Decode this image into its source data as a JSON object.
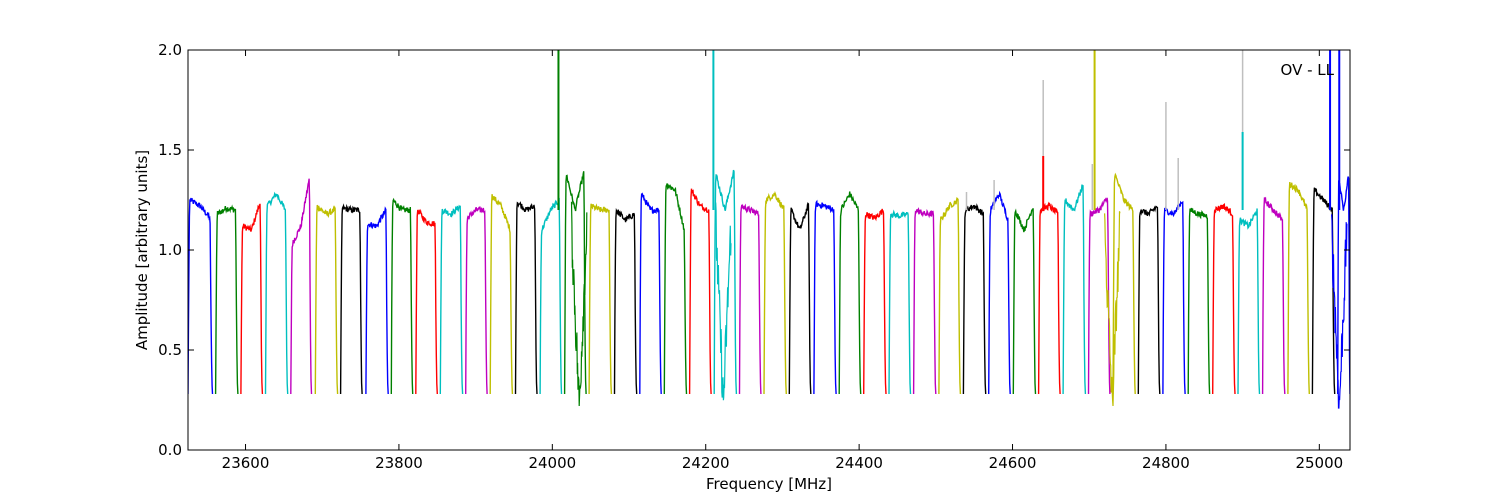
{
  "chart_data": {
    "type": "line",
    "title": "",
    "annotation": "OV - LL",
    "xlabel": "Frequency [MHz]",
    "ylabel": "Amplitude [arbitrary units]",
    "xlim": [
      23525,
      25040
    ],
    "ylim": [
      0.0,
      2.0
    ],
    "xticks": [
      23600,
      23800,
      24000,
      24200,
      24400,
      24600,
      24800,
      25000
    ],
    "xtick_labels": [
      "23600",
      "23800",
      "24000",
      "24200",
      "24400",
      "24600",
      "24800",
      "25000"
    ],
    "yticks": [
      0.0,
      0.5,
      1.0,
      1.5,
      2.0
    ],
    "ytick_labels": [
      "0.0",
      "0.5",
      "1.0",
      "1.5",
      "2.0"
    ],
    "grid": false,
    "legend": "none",
    "color_cycle": [
      "#0000ff",
      "#008000",
      "#ff0000",
      "#00bfbf",
      "#bf00bf",
      "#bfbf00",
      "#000000"
    ],
    "spike_color": "#bfbfbf",
    "series_windows": [
      {
        "start": 23525,
        "end": 23557,
        "color": "#0000ff",
        "peaks": [
          1.25,
          1.22,
          1.16
        ]
      },
      {
        "start": 23561,
        "end": 23590,
        "color": "#008000",
        "peaks": [
          1.18,
          1.21,
          1.2
        ]
      },
      {
        "start": 23594,
        "end": 23622,
        "color": "#ff0000",
        "peaks": [
          1.12,
          1.1,
          1.24
        ]
      },
      {
        "start": 23626,
        "end": 23655,
        "color": "#00bfbf",
        "peaks": [
          1.22,
          1.28,
          1.2
        ]
      },
      {
        "start": 23659,
        "end": 23686,
        "color": "#bf00bf",
        "peaks": [
          1.03,
          1.12,
          1.36
        ]
      },
      {
        "start": 23691,
        "end": 23720,
        "color": "#bfbf00",
        "peaks": [
          1.22,
          1.18,
          1.2
        ]
      },
      {
        "start": 23724,
        "end": 23752,
        "color": "#000000",
        "peaks": [
          1.21,
          1.2,
          1.2
        ]
      },
      {
        "start": 23757,
        "end": 23786,
        "color": "#0000ff",
        "peaks": [
          1.13,
          1.12,
          1.2
        ]
      },
      {
        "start": 23790,
        "end": 23818,
        "color": "#008000",
        "peaks": [
          1.25,
          1.2,
          1.2
        ]
      },
      {
        "start": 23822,
        "end": 23850,
        "color": "#ff0000",
        "peaks": [
          1.2,
          1.14,
          1.13
        ]
      },
      {
        "start": 23854,
        "end": 23883,
        "color": "#00bfbf",
        "peaks": [
          1.2,
          1.18,
          1.22
        ]
      },
      {
        "start": 23887,
        "end": 23915,
        "color": "#bf00bf",
        "peaks": [
          1.16,
          1.2,
          1.2
        ]
      },
      {
        "start": 23919,
        "end": 23948,
        "color": "#bfbf00",
        "peaks": [
          1.27,
          1.22,
          1.1
        ]
      },
      {
        "start": 23952,
        "end": 23980,
        "color": "#000000",
        "peaks": [
          1.24,
          1.2,
          1.22
        ]
      },
      {
        "start": 23984,
        "end": 24012,
        "color": "#00bfbf",
        "peaks": [
          1.1,
          1.2,
          1.25
        ]
      },
      {
        "start": 24016,
        "end": 24044,
        "color": "#008000",
        "peaks": [
          1.38,
          1.2,
          1.39
        ]
      },
      {
        "start": 24048,
        "end": 24077,
        "color": "#bfbf00",
        "peaks": [
          1.22,
          1.2,
          1.2
        ]
      },
      {
        "start": 24081,
        "end": 24110,
        "color": "#000000",
        "peaks": [
          1.2,
          1.15,
          1.18
        ]
      },
      {
        "start": 24114,
        "end": 24142,
        "color": "#0000ff",
        "peaks": [
          1.28,
          1.2,
          1.2
        ]
      },
      {
        "start": 24146,
        "end": 24175,
        "color": "#008000",
        "peaks": [
          1.33,
          1.3,
          1.1
        ]
      },
      {
        "start": 24179,
        "end": 24207,
        "color": "#ff0000",
        "peaks": [
          1.3,
          1.22,
          1.2
        ]
      },
      {
        "start": 24211,
        "end": 24240,
        "color": "#00bfbf",
        "peaks": [
          1.38,
          1.2,
          1.4
        ]
      },
      {
        "start": 24244,
        "end": 24272,
        "color": "#bf00bf",
        "peaks": [
          1.22,
          1.2,
          1.18
        ]
      },
      {
        "start": 24276,
        "end": 24305,
        "color": "#bfbf00",
        "peaks": [
          1.25,
          1.28,
          1.2
        ]
      },
      {
        "start": 24309,
        "end": 24337,
        "color": "#000000",
        "peaks": [
          1.2,
          1.1,
          1.23
        ]
      },
      {
        "start": 24341,
        "end": 24370,
        "color": "#0000ff",
        "peaks": [
          1.23,
          1.22,
          1.2
        ]
      },
      {
        "start": 24374,
        "end": 24402,
        "color": "#008000",
        "peaks": [
          1.2,
          1.28,
          1.2
        ]
      },
      {
        "start": 24406,
        "end": 24435,
        "color": "#ff0000",
        "peaks": [
          1.18,
          1.16,
          1.2
        ]
      },
      {
        "start": 24439,
        "end": 24467,
        "color": "#00bfbf",
        "peaks": [
          1.18,
          1.17,
          1.18
        ]
      },
      {
        "start": 24471,
        "end": 24500,
        "color": "#bf00bf",
        "peaks": [
          1.2,
          1.18,
          1.18
        ]
      },
      {
        "start": 24504,
        "end": 24532,
        "color": "#bfbf00",
        "peaks": [
          1.15,
          1.22,
          1.25
        ]
      },
      {
        "start": 24536,
        "end": 24565,
        "color": "#000000",
        "peaks": [
          1.2,
          1.22,
          1.18
        ]
      },
      {
        "start": 24569,
        "end": 24597,
        "color": "#0000ff",
        "peaks": [
          1.2,
          1.28,
          1.15
        ]
      },
      {
        "start": 24601,
        "end": 24630,
        "color": "#008000",
        "peaks": [
          1.2,
          1.1,
          1.22
        ]
      },
      {
        "start": 24634,
        "end": 24662,
        "color": "#ff0000",
        "peaks": [
          1.2,
          1.22,
          1.18
        ]
      },
      {
        "start": 24666,
        "end": 24695,
        "color": "#00bfbf",
        "peaks": [
          1.25,
          1.2,
          1.33
        ]
      },
      {
        "start": 24699,
        "end": 24727,
        "color": "#bf00bf",
        "peaks": [
          1.18,
          1.2,
          1.26
        ]
      },
      {
        "start": 24731,
        "end": 24760,
        "color": "#bfbf00",
        "peaks": [
          1.38,
          1.25,
          1.2
        ]
      },
      {
        "start": 24764,
        "end": 24792,
        "color": "#000000",
        "peaks": [
          1.2,
          1.18,
          1.22
        ]
      },
      {
        "start": 24796,
        "end": 24825,
        "color": "#0000ff",
        "peaks": [
          1.2,
          1.18,
          1.25
        ]
      },
      {
        "start": 24829,
        "end": 24857,
        "color": "#008000",
        "peaks": [
          1.2,
          1.18,
          1.17
        ]
      },
      {
        "start": 24861,
        "end": 24890,
        "color": "#ff0000",
        "peaks": [
          1.2,
          1.22,
          1.18
        ]
      },
      {
        "start": 24894,
        "end": 24922,
        "color": "#00bfbf",
        "peaks": [
          1.15,
          1.12,
          1.2
        ]
      },
      {
        "start": 24926,
        "end": 24955,
        "color": "#bf00bf",
        "peaks": [
          1.25,
          1.2,
          1.15
        ]
      },
      {
        "start": 24959,
        "end": 24987,
        "color": "#bfbf00",
        "peaks": [
          1.33,
          1.3,
          1.2
        ]
      },
      {
        "start": 24991,
        "end": 25020,
        "color": "#000000",
        "peaks": [
          1.3,
          1.25,
          1.2
        ]
      },
      {
        "start": 25024,
        "end": 25040,
        "color": "#0000ff",
        "peaks": [
          1.35,
          1.2,
          1.38
        ]
      }
    ],
    "spikes": [
      {
        "x": 24008,
        "y": 2.0,
        "color": "#008000"
      },
      {
        "x": 24210,
        "y": 2.0,
        "color": "#00bfbf"
      },
      {
        "x": 24640,
        "y": 1.85,
        "color": "#bfbfbf"
      },
      {
        "x": 24640,
        "y": 1.47,
        "color": "#ff0000"
      },
      {
        "x": 24707,
        "y": 2.0,
        "color": "#bfbf00"
      },
      {
        "x": 24704,
        "y": 1.43,
        "color": "#bfbfbf"
      },
      {
        "x": 24800,
        "y": 1.74,
        "color": "#bfbfbf"
      },
      {
        "x": 24816,
        "y": 1.46,
        "color": "#bfbfbf"
      },
      {
        "x": 24900,
        "y": 2.0,
        "color": "#bfbfbf"
      },
      {
        "x": 24900,
        "y": 1.59,
        "color": "#00bfbf"
      },
      {
        "x": 25014,
        "y": 2.0,
        "color": "#0000ff"
      },
      {
        "x": 25026,
        "y": 2.0,
        "color": "#0000ff"
      },
      {
        "x": 24540,
        "y": 1.29,
        "color": "#bfbfbf"
      },
      {
        "x": 24576,
        "y": 1.35,
        "color": "#bfbfbf"
      }
    ],
    "dips": [
      {
        "x": 24035,
        "min": 0.22,
        "color": "#008000"
      },
      {
        "x": 24223,
        "min": 0.23,
        "color": "#00bfbf"
      },
      {
        "x": 24730,
        "min": 0.22,
        "color": "#bfbf00"
      },
      {
        "x": 25026,
        "min": 0.21,
        "color": "#0000ff"
      }
    ]
  }
}
